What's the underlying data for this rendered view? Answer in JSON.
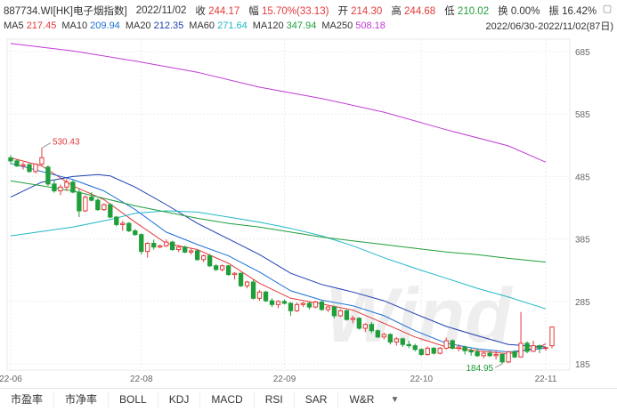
{
  "header": {
    "code": "887734.WI",
    "name": "[HK]电子烟指数]",
    "date": "2022/11/02",
    "close_label": "收",
    "close": "244.17",
    "change_label": "幅",
    "change": "15.70%(33.13)",
    "open_label": "开",
    "open": "214.30",
    "high_label": "高",
    "high": "244.68",
    "low_label": "低",
    "low": "210.02",
    "turnover_label": "换",
    "turnover": "0.00%",
    "amplitude_label": "振",
    "amplitude": "16.42%"
  },
  "ma_legend": [
    {
      "label": "MA5",
      "value": "217.45",
      "color": "#e33a3a"
    },
    {
      "label": "MA10",
      "value": "209.94",
      "color": "#1d6fd6"
    },
    {
      "label": "MA20",
      "value": "212.35",
      "color": "#1d3fb0"
    },
    {
      "label": "MA60",
      "value": "271.64",
      "color": "#22b8c8"
    },
    {
      "label": "MA120",
      "value": "347.94",
      "color": "#1f9e3a"
    },
    {
      "label": "MA250",
      "value": "508.18",
      "color": "#c23ad6"
    }
  ],
  "date_range": "2022/06/30-2022/11/02(87日)",
  "tabs": [
    "市盈率",
    "市净率",
    "BOLL",
    "KDJ",
    "MACD",
    "RSI",
    "SAR",
    "W&R"
  ],
  "watermark": "Wind",
  "chart_data": {
    "type": "candlestick",
    "y_ticks": [
      "685",
      "585",
      "485",
      "385",
      "285",
      "185"
    ],
    "ylim": [
      175,
      705
    ],
    "x_ticks": [
      {
        "label": "22-06",
        "index": 0
      },
      {
        "label": "22-08",
        "index": 21
      },
      {
        "label": "22-09",
        "index": 44
      },
      {
        "label": "22-10",
        "index": 66
      },
      {
        "label": "22-11",
        "index": 86
      }
    ],
    "annotations": [
      {
        "text": "530.43",
        "index": 5,
        "value": 530.43,
        "color": "#e33a3a"
      },
      {
        "text": "184.95",
        "index": 79,
        "value": 184.95,
        "color": "#1f9e3a"
      }
    ],
    "ohlc": [
      [
        515,
        519,
        505,
        510
      ],
      [
        510,
        512,
        500,
        502
      ],
      [
        502,
        508,
        496,
        504
      ],
      [
        504,
        506,
        491,
        493
      ],
      [
        493,
        506,
        490,
        505
      ],
      [
        505,
        531,
        503,
        515
      ],
      [
        500,
        503,
        470,
        473
      ],
      [
        473,
        480,
        459,
        462
      ],
      [
        462,
        472,
        455,
        468
      ],
      [
        468,
        481,
        462,
        476
      ],
      [
        476,
        479,
        458,
        460
      ],
      [
        460,
        465,
        420,
        430
      ],
      [
        430,
        455,
        428,
        452
      ],
      [
        452,
        460,
        445,
        447
      ],
      [
        447,
        450,
        430,
        432
      ],
      [
        432,
        442,
        430,
        440
      ],
      [
        440,
        442,
        418,
        420
      ],
      [
        420,
        422,
        405,
        408
      ],
      [
        408,
        414,
        398,
        410
      ],
      [
        410,
        412,
        396,
        398
      ],
      [
        398,
        401,
        390,
        392
      ],
      [
        392,
        394,
        360,
        365
      ],
      [
        365,
        380,
        355,
        378
      ],
      [
        378,
        384,
        368,
        372
      ],
      [
        372,
        376,
        370,
        374
      ],
      [
        374,
        384,
        372,
        380
      ],
      [
        380,
        382,
        366,
        368
      ],
      [
        368,
        375,
        364,
        372
      ],
      [
        372,
        374,
        362,
        364
      ],
      [
        364,
        370,
        360,
        366
      ],
      [
        366,
        368,
        350,
        352
      ],
      [
        352,
        360,
        348,
        358
      ],
      [
        358,
        361,
        340,
        342
      ],
      [
        342,
        345,
        334,
        336
      ],
      [
        336,
        344,
        333,
        342
      ],
      [
        342,
        343,
        326,
        328
      ],
      [
        328,
        332,
        320,
        330
      ],
      [
        330,
        331,
        308,
        310
      ],
      [
        310,
        318,
        306,
        316
      ],
      [
        316,
        320,
        288,
        290
      ],
      [
        290,
        303,
        286,
        300
      ],
      [
        300,
        302,
        284,
        286
      ],
      [
        286,
        290,
        276,
        280
      ],
      [
        280,
        287,
        274,
        285
      ],
      [
        285,
        288,
        280,
        282
      ],
      [
        282,
        284,
        262,
        270
      ],
      [
        270,
        283,
        268,
        280
      ],
      [
        280,
        284,
        276,
        282
      ],
      [
        282,
        284,
        272,
        276
      ],
      [
        276,
        286,
        274,
        284
      ],
      [
        284,
        286,
        270,
        272
      ],
      [
        272,
        278,
        268,
        276
      ],
      [
        276,
        278,
        258,
        262
      ],
      [
        262,
        272,
        260,
        270
      ],
      [
        270,
        272,
        254,
        256
      ],
      [
        256,
        262,
        250,
        258
      ],
      [
        258,
        260,
        240,
        242
      ],
      [
        242,
        250,
        236,
        248
      ],
      [
        248,
        252,
        234,
        238
      ],
      [
        238,
        240,
        226,
        228
      ],
      [
        228,
        235,
        224,
        232
      ],
      [
        232,
        234,
        216,
        220
      ],
      [
        220,
        228,
        214,
        225
      ],
      [
        225,
        227,
        212,
        216
      ],
      [
        216,
        222,
        210,
        214
      ],
      [
        214,
        217,
        205,
        208
      ],
      [
        208,
        210,
        198,
        200
      ],
      [
        200,
        213,
        198,
        210
      ],
      [
        210,
        212,
        200,
        202
      ],
      [
        202,
        212,
        200,
        210
      ],
      [
        210,
        227,
        208,
        222
      ],
      [
        222,
        224,
        208,
        210
      ],
      [
        210,
        216,
        205,
        212
      ],
      [
        212,
        214,
        200,
        206
      ],
      [
        206,
        210,
        198,
        204
      ],
      [
        204,
        210,
        196,
        198
      ],
      [
        198,
        206,
        194,
        202
      ],
      [
        202,
        206,
        196,
        198
      ],
      [
        198,
        206,
        192,
        200
      ],
      [
        200,
        202,
        185,
        188
      ],
      [
        188,
        206,
        186,
        204
      ],
      [
        204,
        207,
        194,
        196
      ],
      [
        196,
        268,
        195,
        218
      ],
      [
        218,
        221,
        202,
        205
      ],
      [
        205,
        222,
        204,
        214
      ],
      [
        214,
        216,
        202,
        210
      ],
      [
        210,
        212,
        206,
        211
      ],
      [
        214,
        245,
        210,
        244
      ]
    ],
    "ma": {
      "MA5": [
        [
          0,
          515
        ],
        [
          5,
          502
        ],
        [
          10,
          470
        ],
        [
          15,
          448
        ],
        [
          20,
          412
        ],
        [
          25,
          378
        ],
        [
          30,
          368
        ],
        [
          35,
          346
        ],
        [
          40,
          314
        ],
        [
          45,
          290
        ],
        [
          50,
          281
        ],
        [
          55,
          271
        ],
        [
          60,
          250
        ],
        [
          65,
          228
        ],
        [
          70,
          212
        ],
        [
          75,
          206
        ],
        [
          80,
          201
        ],
        [
          85,
          212
        ],
        [
          86,
          217
        ]
      ],
      "MA10": [
        [
          0,
          506
        ],
        [
          10,
          480
        ],
        [
          15,
          462
        ],
        [
          20,
          432
        ],
        [
          25,
          396
        ],
        [
          30,
          376
        ],
        [
          35,
          358
        ],
        [
          40,
          332
        ],
        [
          45,
          302
        ],
        [
          50,
          287
        ],
        [
          55,
          278
        ],
        [
          60,
          262
        ],
        [
          65,
          238
        ],
        [
          70,
          218
        ],
        [
          75,
          209
        ],
        [
          80,
          204
        ],
        [
          86,
          210
        ]
      ],
      "MA20": [
        [
          0,
          452
        ],
        [
          5,
          476
        ],
        [
          10,
          485
        ],
        [
          14,
          488
        ],
        [
          16,
          486
        ],
        [
          20,
          468
        ],
        [
          25,
          440
        ],
        [
          30,
          410
        ],
        [
          35,
          385
        ],
        [
          40,
          360
        ],
        [
          45,
          330
        ],
        [
          50,
          312
        ],
        [
          55,
          300
        ],
        [
          60,
          286
        ],
        [
          65,
          265
        ],
        [
          70,
          245
        ],
        [
          75,
          230
        ],
        [
          80,
          216
        ],
        [
          86,
          212
        ]
      ],
      "MA60": [
        [
          0,
          390
        ],
        [
          10,
          404
        ],
        [
          16,
          416
        ],
        [
          20,
          426
        ],
        [
          25,
          430
        ],
        [
          30,
          428
        ],
        [
          35,
          420
        ],
        [
          40,
          412
        ],
        [
          45,
          402
        ],
        [
          50,
          390
        ],
        [
          55,
          374
        ],
        [
          60,
          355
        ],
        [
          65,
          338
        ],
        [
          70,
          322
        ],
        [
          75,
          306
        ],
        [
          80,
          292
        ],
        [
          86,
          273
        ]
      ],
      "MA120": [
        [
          0,
          478
        ],
        [
          5,
          470
        ],
        [
          10,
          462
        ],
        [
          15,
          450
        ],
        [
          20,
          438
        ],
        [
          25,
          428
        ],
        [
          30,
          418
        ],
        [
          35,
          410
        ],
        [
          40,
          404
        ],
        [
          45,
          396
        ],
        [
          50,
          388
        ],
        [
          55,
          382
        ],
        [
          60,
          376
        ],
        [
          65,
          370
        ],
        [
          70,
          364
        ],
        [
          75,
          360
        ],
        [
          80,
          354
        ],
        [
          86,
          348
        ]
      ],
      "MA250": [
        [
          0,
          698
        ],
        [
          10,
          686
        ],
        [
          20,
          670
        ],
        [
          30,
          652
        ],
        [
          40,
          628
        ],
        [
          50,
          610
        ],
        [
          60,
          588
        ],
        [
          70,
          560
        ],
        [
          80,
          534
        ],
        [
          86,
          508
        ]
      ]
    }
  }
}
